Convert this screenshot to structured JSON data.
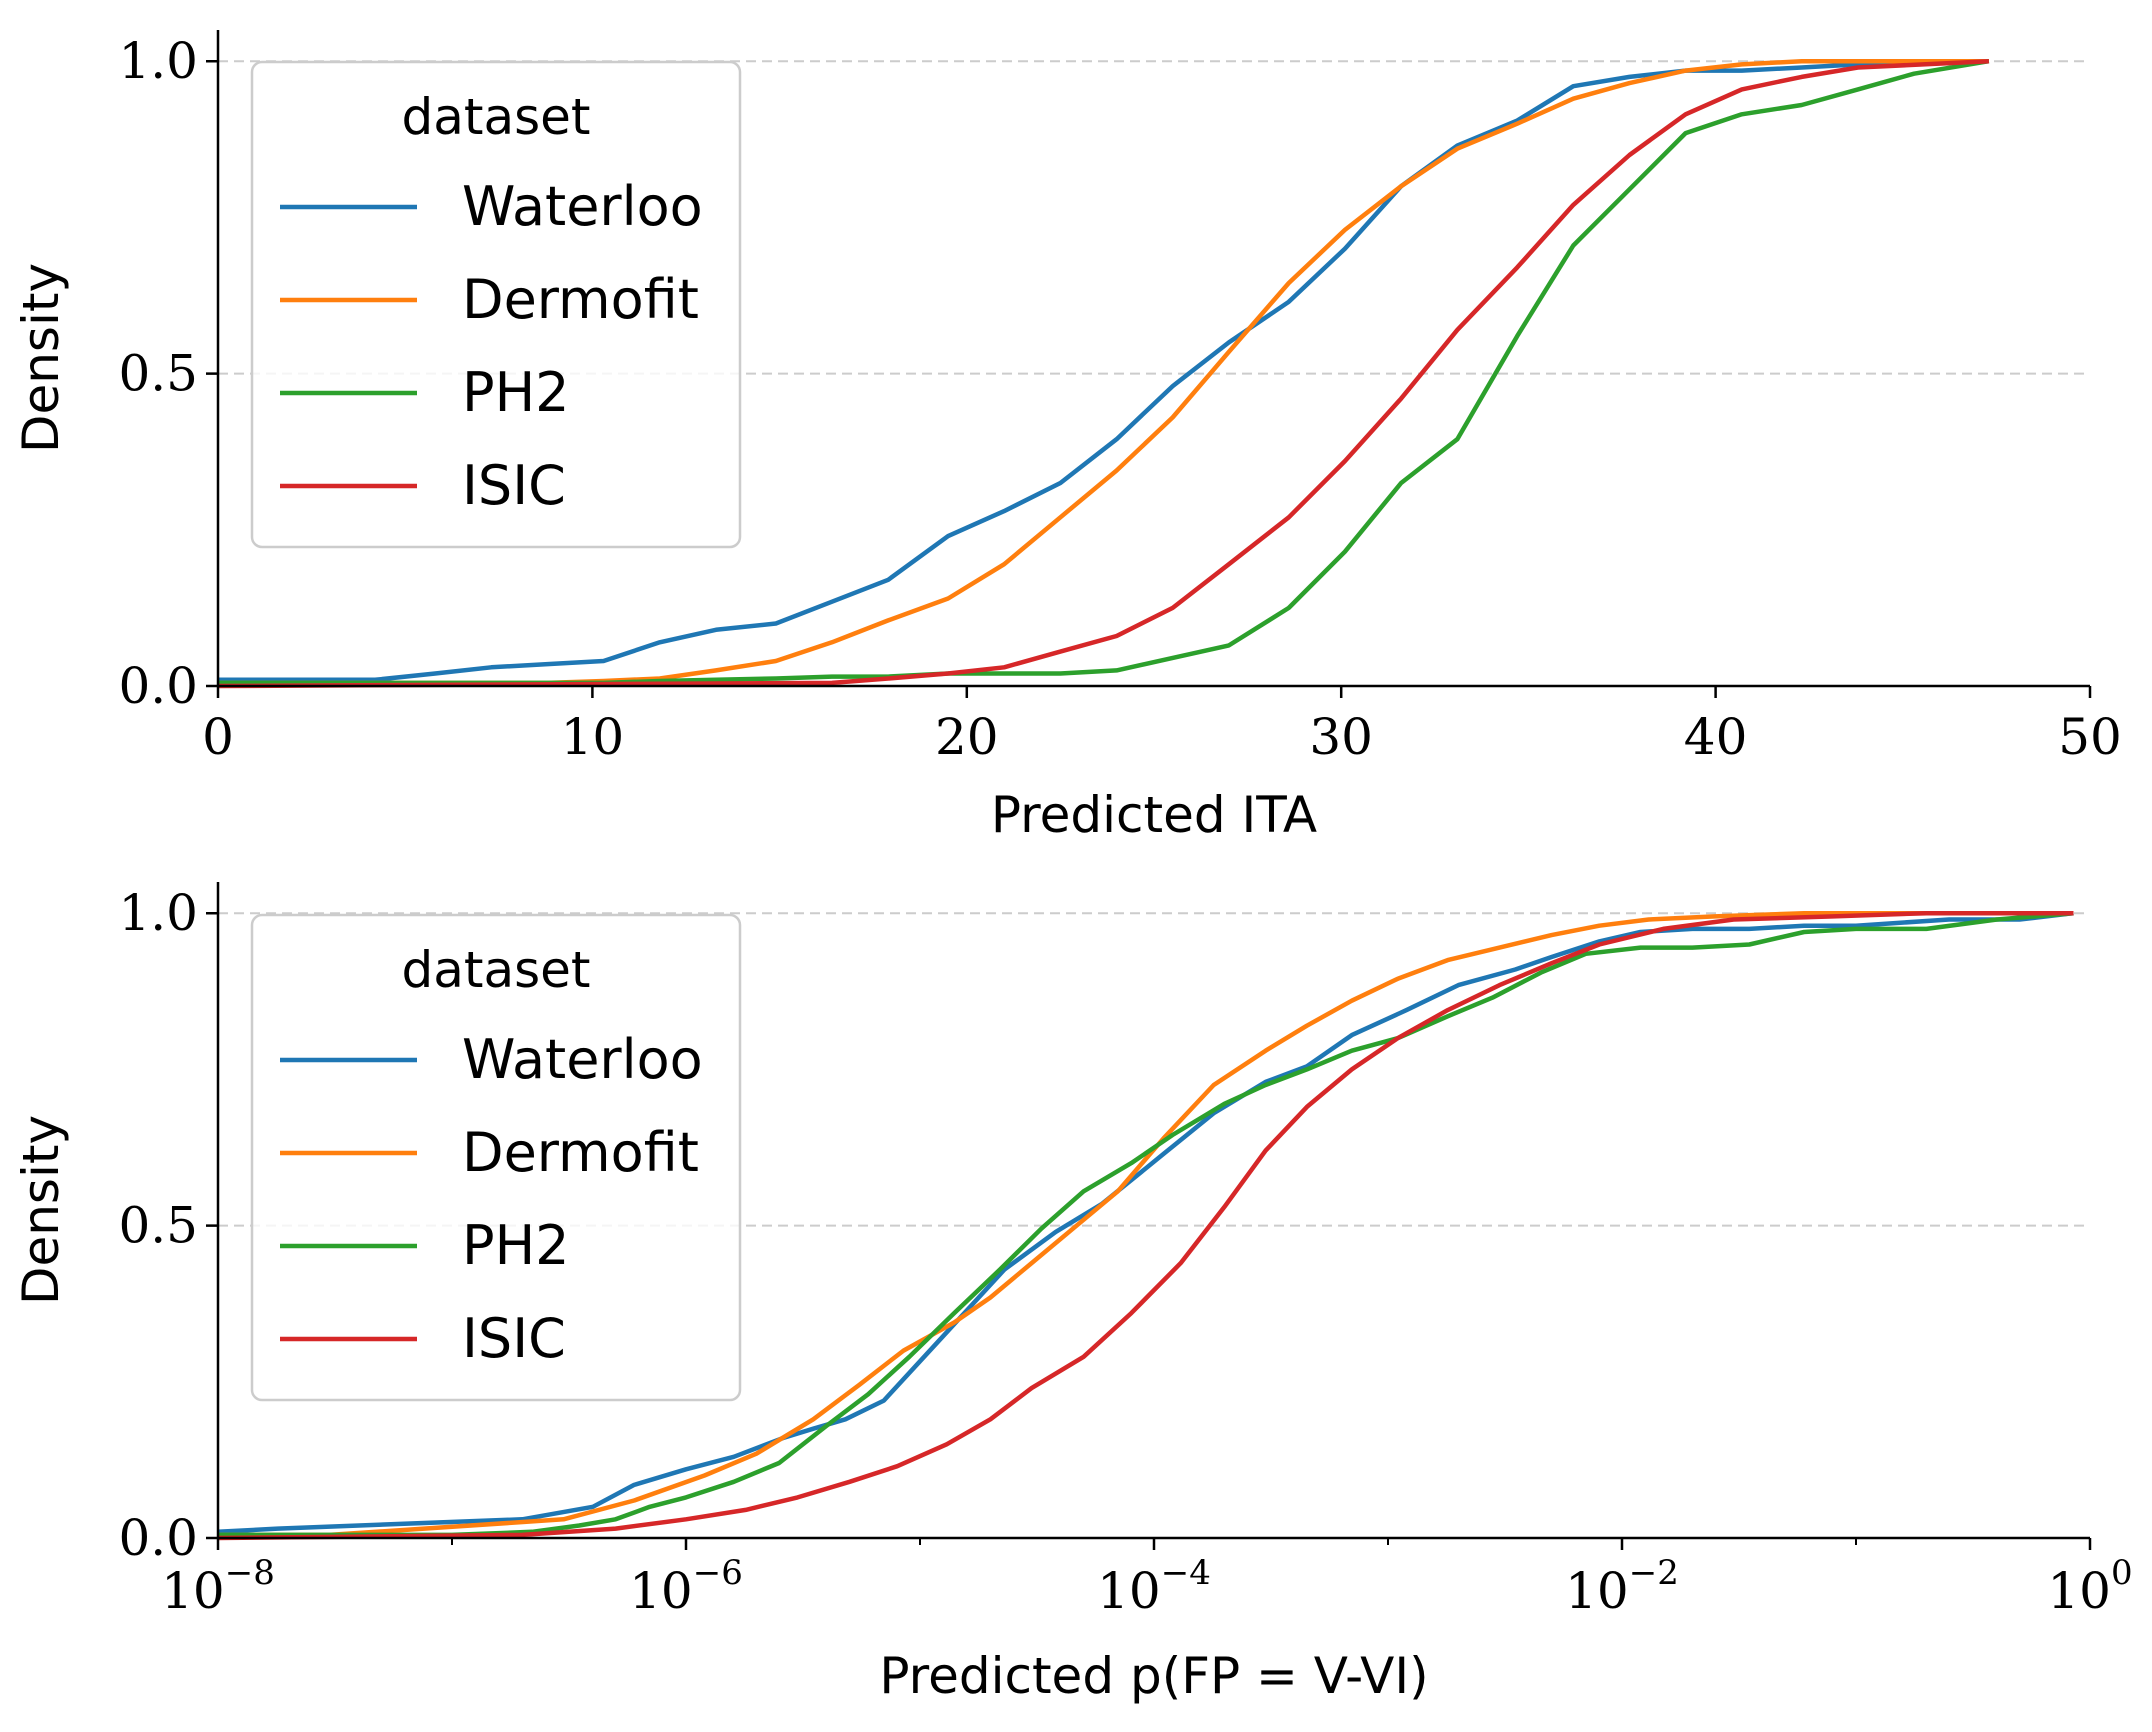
{
  "colors": {
    "Waterloo": "#1f77b4",
    "Dermofit": "#ff7f0e",
    "PH2": "#2ca02c",
    "ISIC": "#d62728",
    "grid": "#cccccc",
    "axis": "#000000"
  },
  "chart_data": [
    {
      "type": "line",
      "xlabel": "Predicted ITA",
      "ylabel": "Density",
      "xscale": "linear",
      "xlim": [
        0,
        50
      ],
      "ylim": [
        0,
        1.05
      ],
      "xticks": [
        0,
        10,
        20,
        30,
        40,
        50
      ],
      "xtick_labels": [
        "0",
        "10",
        "20",
        "30",
        "40",
        "50"
      ],
      "yticks": [
        0,
        0.5,
        1
      ],
      "ytick_labels": [
        "0.0",
        "0.5",
        "1.0"
      ],
      "grid": "horizontal-dashed",
      "legend": {
        "title": "dataset",
        "position": "upper-left",
        "entries": [
          "Waterloo",
          "Dermofit",
          "PH2",
          "ISIC"
        ]
      },
      "series": [
        {
          "name": "Waterloo",
          "x": [
            0,
            4.2,
            5.8,
            7.3,
            8.8,
            10.3,
            11.8,
            13.3,
            14.9,
            16.4,
            17.9,
            19.5,
            21.0,
            22.5,
            24.0,
            25.5,
            27.0,
            28.6,
            30.1,
            31.6,
            33.1,
            34.7,
            36.2,
            37.7,
            39.2,
            40.7,
            42.3,
            43.8,
            47.3
          ],
          "y": [
            0.01,
            0.01,
            0.02,
            0.03,
            0.035,
            0.04,
            0.07,
            0.09,
            0.1,
            0.135,
            0.17,
            0.24,
            0.28,
            0.325,
            0.395,
            0.48,
            0.55,
            0.615,
            0.7,
            0.8,
            0.865,
            0.905,
            0.96,
            0.975,
            0.985,
            0.985,
            0.99,
            0.995,
            1.0
          ]
        },
        {
          "name": "Dermofit",
          "x": [
            0,
            8.8,
            10.3,
            11.8,
            13.3,
            14.9,
            16.4,
            17.9,
            19.5,
            21.0,
            22.5,
            24.0,
            25.5,
            27.0,
            28.6,
            30.1,
            31.6,
            33.1,
            34.7,
            36.2,
            37.7,
            39.2,
            40.7,
            42.3,
            47.3
          ],
          "y": [
            0.005,
            0.005,
            0.008,
            0.012,
            0.025,
            0.04,
            0.07,
            0.105,
            0.14,
            0.195,
            0.27,
            0.345,
            0.43,
            0.535,
            0.645,
            0.73,
            0.8,
            0.86,
            0.9,
            0.94,
            0.965,
            0.985,
            0.995,
            1.0,
            1.0
          ]
        },
        {
          "name": "PH2",
          "x": [
            0,
            10.3,
            11.8,
            13.3,
            14.9,
            16.4,
            17.9,
            19.5,
            21.0,
            22.5,
            24.0,
            25.5,
            27.0,
            28.6,
            30.1,
            31.6,
            33.1,
            34.7,
            36.2,
            37.7,
            39.2,
            40.7,
            42.3,
            43.8,
            45.3,
            47.3
          ],
          "y": [
            0.005,
            0.005,
            0.008,
            0.01,
            0.012,
            0.015,
            0.015,
            0.02,
            0.02,
            0.02,
            0.025,
            0.045,
            0.065,
            0.125,
            0.215,
            0.325,
            0.395,
            0.56,
            0.705,
            0.795,
            0.885,
            0.915,
            0.93,
            0.955,
            0.98,
            1.0
          ]
        },
        {
          "name": "ISIC",
          "x": [
            0,
            16.4,
            17.9,
            19.5,
            21.0,
            22.5,
            24.0,
            25.5,
            27.0,
            28.6,
            30.1,
            31.6,
            33.1,
            34.7,
            36.2,
            37.7,
            39.2,
            40.7,
            42.3,
            43.8,
            47.3
          ],
          "y": [
            0.0,
            0.005,
            0.012,
            0.02,
            0.03,
            0.055,
            0.08,
            0.125,
            0.195,
            0.27,
            0.36,
            0.46,
            0.57,
            0.67,
            0.77,
            0.85,
            0.915,
            0.955,
            0.975,
            0.99,
            1.0
          ]
        }
      ]
    },
    {
      "type": "line",
      "xlabel": "Predicted p(FP = V-VI)",
      "ylabel": "Density",
      "xscale": "log",
      "xlim": [
        1e-08,
        1
      ],
      "ylim": [
        0,
        1.05
      ],
      "xticks": [
        1e-08,
        1e-06,
        0.0001,
        0.01,
        1
      ],
      "xtick_base_labels": [
        "10",
        "10",
        "10",
        "10",
        "10"
      ],
      "xtick_exponents": [
        "−8",
        "−6",
        "−4",
        "−2",
        "0"
      ],
      "yticks": [
        0,
        0.5,
        1
      ],
      "ytick_labels": [
        "0.0",
        "0.5",
        "1.0"
      ],
      "grid": "horizontal-dashed",
      "legend": {
        "title": "dataset",
        "position": "upper-left",
        "entries": [
          "Waterloo",
          "Dermofit",
          "PH2",
          "ISIC"
        ]
      },
      "series": [
        {
          "name": "Waterloo",
          "x": [
            1e-08,
            1.8e-08,
            2e-07,
            4e-07,
            6e-07,
            1e-06,
            1.6e-06,
            2.6e-06,
            3.5e-06,
            4.8e-06,
            7e-06,
            1.2e-05,
            2.3e-05,
            3.8e-05,
            6e-05,
            0.00011,
            0.00018,
            0.0003,
            0.00045,
            0.0007,
            0.0012,
            0.002,
            0.0035,
            0.005,
            0.008,
            0.012,
            0.02,
            0.035,
            0.06,
            0.1,
            0.25,
            0.5,
            0.85
          ],
          "y": [
            0.01,
            0.015,
            0.03,
            0.05,
            0.085,
            0.11,
            0.13,
            0.16,
            0.175,
            0.19,
            0.22,
            0.315,
            0.43,
            0.49,
            0.535,
            0.615,
            0.68,
            0.73,
            0.755,
            0.805,
            0.845,
            0.885,
            0.91,
            0.93,
            0.955,
            0.97,
            0.975,
            0.975,
            0.98,
            0.98,
            0.99,
            0.99,
            1.0
          ]
        },
        {
          "name": "Dermofit",
          "x": [
            1e-08,
            3e-08,
            3e-07,
            6e-07,
            1.2e-06,
            2e-06,
            3.5e-06,
            5.5e-06,
            8.5e-06,
            1.4e-05,
            2e-05,
            3e-05,
            4.5e-05,
            7e-05,
            0.00011,
            0.00018,
            0.0003,
            0.00045,
            0.0007,
            0.0011,
            0.0018,
            0.003,
            0.005,
            0.008,
            0.013,
            0.025,
            0.06,
            0.15,
            0.85
          ],
          "y": [
            0.005,
            0.005,
            0.03,
            0.06,
            0.1,
            0.135,
            0.19,
            0.245,
            0.3,
            0.345,
            0.385,
            0.44,
            0.495,
            0.555,
            0.64,
            0.725,
            0.78,
            0.82,
            0.86,
            0.895,
            0.925,
            0.945,
            0.965,
            0.98,
            0.99,
            0.995,
            1.0,
            1.0,
            1.0
          ]
        },
        {
          "name": "PH2",
          "x": [
            1e-08,
            1e-07,
            2.2e-07,
            3.5e-07,
            5e-07,
            7e-07,
            1e-06,
            1.6e-06,
            2.5e-06,
            4e-06,
            6e-06,
            9e-06,
            1.4e-05,
            2.2e-05,
            3.3e-05,
            5e-05,
            8e-05,
            0.00012,
            0.0002,
            0.0003,
            0.00045,
            0.0007,
            0.0011,
            0.0018,
            0.0028,
            0.0045,
            0.007,
            0.012,
            0.02,
            0.035,
            0.06,
            0.1,
            0.2,
            0.4,
            0.85
          ],
          "y": [
            0.005,
            0.005,
            0.01,
            0.02,
            0.03,
            0.05,
            0.065,
            0.09,
            0.12,
            0.18,
            0.23,
            0.29,
            0.36,
            0.43,
            0.495,
            0.555,
            0.6,
            0.645,
            0.695,
            0.725,
            0.75,
            0.78,
            0.8,
            0.835,
            0.865,
            0.905,
            0.935,
            0.945,
            0.945,
            0.95,
            0.97,
            0.975,
            0.975,
            0.99,
            1.0
          ]
        },
        {
          "name": "ISIC",
          "x": [
            1e-08,
            2e-07,
            5e-07,
            1e-06,
            1.8e-06,
            3e-06,
            5e-06,
            8e-06,
            1.3e-05,
            2e-05,
            3e-05,
            5e-05,
            8e-05,
            0.00013,
            0.0002,
            0.0003,
            0.00045,
            0.0007,
            0.0011,
            0.0018,
            0.003,
            0.005,
            0.008,
            0.015,
            0.03,
            0.08,
            0.2,
            0.85
          ],
          "y": [
            0.0,
            0.005,
            0.015,
            0.03,
            0.045,
            0.065,
            0.09,
            0.115,
            0.15,
            0.19,
            0.24,
            0.29,
            0.36,
            0.44,
            0.53,
            0.62,
            0.69,
            0.75,
            0.8,
            0.845,
            0.885,
            0.92,
            0.95,
            0.975,
            0.99,
            0.995,
            1.0,
            1.0
          ]
        }
      ]
    }
  ]
}
